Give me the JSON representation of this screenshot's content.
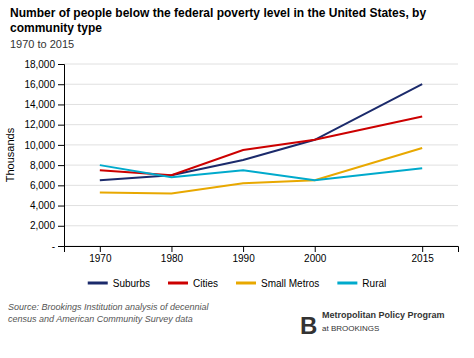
{
  "chart_data": {
    "type": "line",
    "title": "Number of people below the federal poverty level in the United States, by community type",
    "subtitle": "1970 to 2015",
    "y_label": "Thousands",
    "x": [
      1970,
      1980,
      1990,
      2000,
      2015
    ],
    "series": [
      {
        "name": "Suburbs",
        "color": "#1b2a6b",
        "values": [
          6500,
          7000,
          8500,
          10500,
          16000
        ]
      },
      {
        "name": "Cities",
        "color": "#cc0000",
        "values": [
          7500,
          7000,
          9500,
          10500,
          12800
        ]
      },
      {
        "name": "Small Metros",
        "color": "#e8a800",
        "values": [
          5300,
          5200,
          6200,
          6500,
          9700
        ]
      },
      {
        "name": "Rural",
        "color": "#00aacc",
        "values": [
          8000,
          6800,
          7500,
          6500,
          7700
        ]
      }
    ],
    "xlim": [
      1965,
      2020
    ],
    "xticks": [
      1970,
      1980,
      1990,
      2000,
      2015
    ],
    "ylim": [
      0,
      18000
    ],
    "yticks": [
      {
        "value": 0,
        "label": "-"
      },
      {
        "value": 2000,
        "label": "2,000"
      },
      {
        "value": 4000,
        "label": "4,000"
      },
      {
        "value": 6000,
        "label": "6,000"
      },
      {
        "value": 8000,
        "label": "8,000"
      },
      {
        "value": 10000,
        "label": "10,000"
      },
      {
        "value": 12000,
        "label": "12,000"
      },
      {
        "value": 14000,
        "label": "14,000"
      },
      {
        "value": 16000,
        "label": "16,000"
      },
      {
        "value": 18000,
        "label": "18,000"
      }
    ],
    "grid": true,
    "legend": "bottom",
    "source": "Source: Brookings Institution analysis of decennial\ncensus and American Community Survey data",
    "annotations": [
      "B",
      "Metropolitan Policy Program",
      "at BROOKINGS"
    ]
  }
}
